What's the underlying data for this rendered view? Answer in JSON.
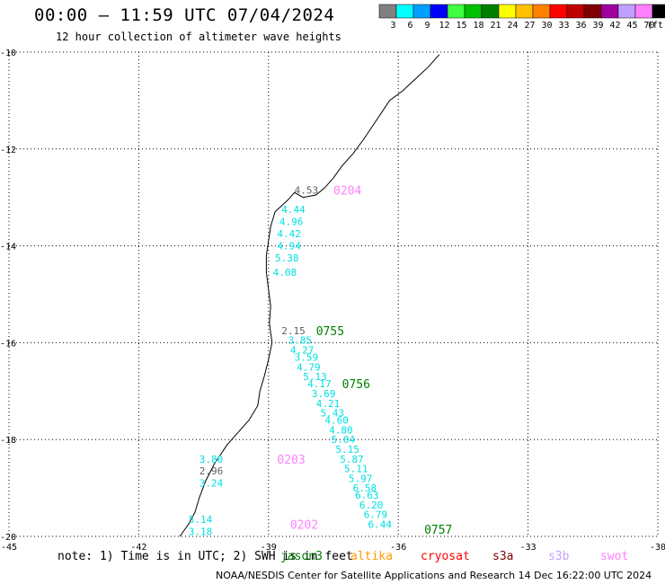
{
  "header": {
    "title": "00:00 – 11:59 UTC 07/04/2024",
    "subtitle": "12 hour collection of altimeter wave heights"
  },
  "legend": {
    "unit": "(ft)",
    "bins": [
      {
        "label": "3",
        "color": "#808080"
      },
      {
        "label": "6",
        "color": "#00ffff"
      },
      {
        "label": "9",
        "color": "#00a0ff"
      },
      {
        "label": "12",
        "color": "#0000ff"
      },
      {
        "label": "15",
        "color": "#40ff40"
      },
      {
        "label": "18",
        "color": "#00c000"
      },
      {
        "label": "21",
        "color": "#008000"
      },
      {
        "label": "24",
        "color": "#ffff00"
      },
      {
        "label": "27",
        "color": "#ffc000"
      },
      {
        "label": "30",
        "color": "#ff8000"
      },
      {
        "label": "33",
        "color": "#ff0000"
      },
      {
        "label": "36",
        "color": "#c00000"
      },
      {
        "label": "39",
        "color": "#800000"
      },
      {
        "label": "42",
        "color": "#a000a0"
      },
      {
        "label": "45",
        "color": "#c0a0ff"
      },
      {
        "label": "70",
        "color": "#ff80ff"
      },
      {
        "label": "",
        "color": "#000000"
      }
    ]
  },
  "map": {
    "lon_range": [
      -45,
      -30
    ],
    "lat_range": [
      -20,
      -10
    ],
    "lon_ticks": [
      "-45",
      "-42",
      "-39",
      "-36",
      "-33",
      "-30"
    ],
    "lat_ticks": [
      "-10",
      "-12",
      "-14",
      "-16",
      "-18",
      "-20"
    ],
    "lon_tick_values": [
      -45,
      -42,
      -39,
      -36,
      -33,
      -30
    ],
    "lat_tick_values": [
      -10,
      -12,
      -14,
      -16,
      -18,
      -20
    ],
    "coastline": [
      [
        -35.05,
        -10.05
      ],
      [
        -35.3,
        -10.3
      ],
      [
        -35.6,
        -10.55
      ],
      [
        -35.9,
        -10.8
      ],
      [
        -36.2,
        -11.0
      ],
      [
        -36.5,
        -11.4
      ],
      [
        -36.8,
        -11.8
      ],
      [
        -37.05,
        -12.1
      ],
      [
        -37.3,
        -12.35
      ],
      [
        -37.5,
        -12.6
      ],
      [
        -37.7,
        -12.8
      ],
      [
        -37.9,
        -12.95
      ],
      [
        -38.2,
        -13.0
      ],
      [
        -38.4,
        -12.9
      ],
      [
        -38.55,
        -13.05
      ],
      [
        -38.85,
        -13.3
      ],
      [
        -38.95,
        -13.6
      ],
      [
        -39.0,
        -13.9
      ],
      [
        -39.05,
        -14.2
      ],
      [
        -39.05,
        -14.55
      ],
      [
        -39.0,
        -14.9
      ],
      [
        -38.95,
        -15.25
      ],
      [
        -38.98,
        -15.6
      ],
      [
        -38.92,
        -16.0
      ],
      [
        -39.0,
        -16.35
      ],
      [
        -39.1,
        -16.7
      ],
      [
        -39.2,
        -17.0
      ],
      [
        -39.25,
        -17.3
      ],
      [
        -39.45,
        -17.6
      ],
      [
        -39.7,
        -17.85
      ],
      [
        -39.95,
        -18.1
      ],
      [
        -40.25,
        -18.5
      ],
      [
        -40.45,
        -18.85
      ],
      [
        -40.6,
        -19.2
      ],
      [
        -40.7,
        -19.5
      ],
      [
        -40.85,
        -19.75
      ],
      [
        -41.05,
        -20.0
      ]
    ],
    "ship_tracks": [
      {
        "label": "0204",
        "color": "#ff80ff",
        "label_lon": -37.5,
        "label_lat": -12.85
      },
      {
        "label": "0755",
        "color": "#008000",
        "label_lon": -37.9,
        "label_lat": -15.75
      },
      {
        "label": "0756",
        "color": "#008000",
        "label_lon": -37.3,
        "label_lat": -16.85
      },
      {
        "label": "0203",
        "color": "#ff80ff",
        "label_lon": -38.8,
        "label_lat": -18.4
      },
      {
        "label": "0202",
        "color": "#ff80ff",
        "label_lon": -38.5,
        "label_lat": -19.75
      },
      {
        "label": "0757",
        "color": "#008000",
        "label_lon": -35.4,
        "label_lat": -19.85
      }
    ],
    "observations": [
      {
        "text": "4.53",
        "color": "#606060",
        "lon": -38.4,
        "lat": -12.85
      },
      {
        "text": "4.44",
        "color": "#00e0e0",
        "lon": -38.7,
        "lat": -13.25
      },
      {
        "text": "4.96",
        "color": "#00e0e0",
        "lon": -38.75,
        "lat": -13.5
      },
      {
        "text": "4.42",
        "color": "#00e0e0",
        "lon": -38.8,
        "lat": -13.75
      },
      {
        "text": "4.94",
        "color": "#00e0e0",
        "lon": -38.8,
        "lat": -14.0
      },
      {
        "text": "5.38",
        "color": "#00e0e0",
        "lon": -38.85,
        "lat": -14.25
      },
      {
        "text": "4.08",
        "color": "#00e0e0",
        "lon": -38.9,
        "lat": -14.55
      },
      {
        "text": "2.15",
        "color": "#606060",
        "lon": -38.7,
        "lat": -15.75
      },
      {
        "text": "3.85",
        "color": "#00e0e0",
        "lon": -38.55,
        "lat": -15.95
      },
      {
        "text": "4.27",
        "color": "#00e0e0",
        "lon": -38.5,
        "lat": -16.15
      },
      {
        "text": "3.59",
        "color": "#00e0e0",
        "lon": -38.4,
        "lat": -16.3
      },
      {
        "text": "4.79",
        "color": "#00e0e0",
        "lon": -38.35,
        "lat": -16.5
      },
      {
        "text": "5.13",
        "color": "#00e0e0",
        "lon": -38.2,
        "lat": -16.7
      },
      {
        "text": "4.17",
        "color": "#00e0e0",
        "lon": -38.1,
        "lat": -16.85
      },
      {
        "text": "3.69",
        "color": "#00e0e0",
        "lon": -38.0,
        "lat": -17.05
      },
      {
        "text": "4.21",
        "color": "#00e0e0",
        "lon": -37.9,
        "lat": -17.25
      },
      {
        "text": "5.43",
        "color": "#00e0e0",
        "lon": -37.8,
        "lat": -17.45
      },
      {
        "text": "4.60",
        "color": "#00e0e0",
        "lon": -37.7,
        "lat": -17.6
      },
      {
        "text": "4.80",
        "color": "#00e0e0",
        "lon": -37.6,
        "lat": -17.8
      },
      {
        "text": "5.04",
        "color": "#00e0e0",
        "lon": -37.55,
        "lat": -18.0
      },
      {
        "text": "5.15",
        "color": "#00e0e0",
        "lon": -37.45,
        "lat": -18.2
      },
      {
        "text": "5.87",
        "color": "#00e0e0",
        "lon": -37.35,
        "lat": -18.4
      },
      {
        "text": "5.11",
        "color": "#00e0e0",
        "lon": -37.25,
        "lat": -18.6
      },
      {
        "text": "5.97",
        "color": "#00e0e0",
        "lon": -37.15,
        "lat": -18.8
      },
      {
        "text": "6.58",
        "color": "#00e0e0",
        "lon": -37.05,
        "lat": -19.0
      },
      {
        "text": "6.63",
        "color": "#00e0e0",
        "lon": -37.0,
        "lat": -19.15
      },
      {
        "text": "6.20",
        "color": "#00e0e0",
        "lon": -36.9,
        "lat": -19.35
      },
      {
        "text": "6.79",
        "color": "#00e0e0",
        "lon": -36.8,
        "lat": -19.55
      },
      {
        "text": "6.44",
        "color": "#00e0e0",
        "lon": -36.7,
        "lat": -19.75
      },
      {
        "text": "3.80",
        "color": "#00e0e0",
        "lon": -40.6,
        "lat": -18.4
      },
      {
        "text": "2.96",
        "color": "#606060",
        "lon": -40.6,
        "lat": -18.65
      },
      {
        "text": "3.24",
        "color": "#00e0e0",
        "lon": -40.6,
        "lat": -18.9
      },
      {
        "text": "5.14",
        "color": "#00e0e0",
        "lon": -40.85,
        "lat": -19.65
      },
      {
        "text": "3.18",
        "color": "#00e0e0",
        "lon": -40.85,
        "lat": -19.9
      }
    ]
  },
  "note": "note:  1) Time is in UTC; 2) SWH is in feet",
  "satellites": [
    {
      "name": "jason3",
      "color": "#008000"
    },
    {
      "name": "altika",
      "color": "#ff9900"
    },
    {
      "name": "cryosat",
      "color": "#ff0000"
    },
    {
      "name": "s3a",
      "color": "#800000"
    },
    {
      "name": "s3b",
      "color": "#c0a0ff"
    },
    {
      "name": "swot",
      "color": "#ff80ff"
    }
  ],
  "footer": "NOAA/NESDIS Center for Satellite Applications and Research    14 Dec 16:22:00 UTC 2024"
}
